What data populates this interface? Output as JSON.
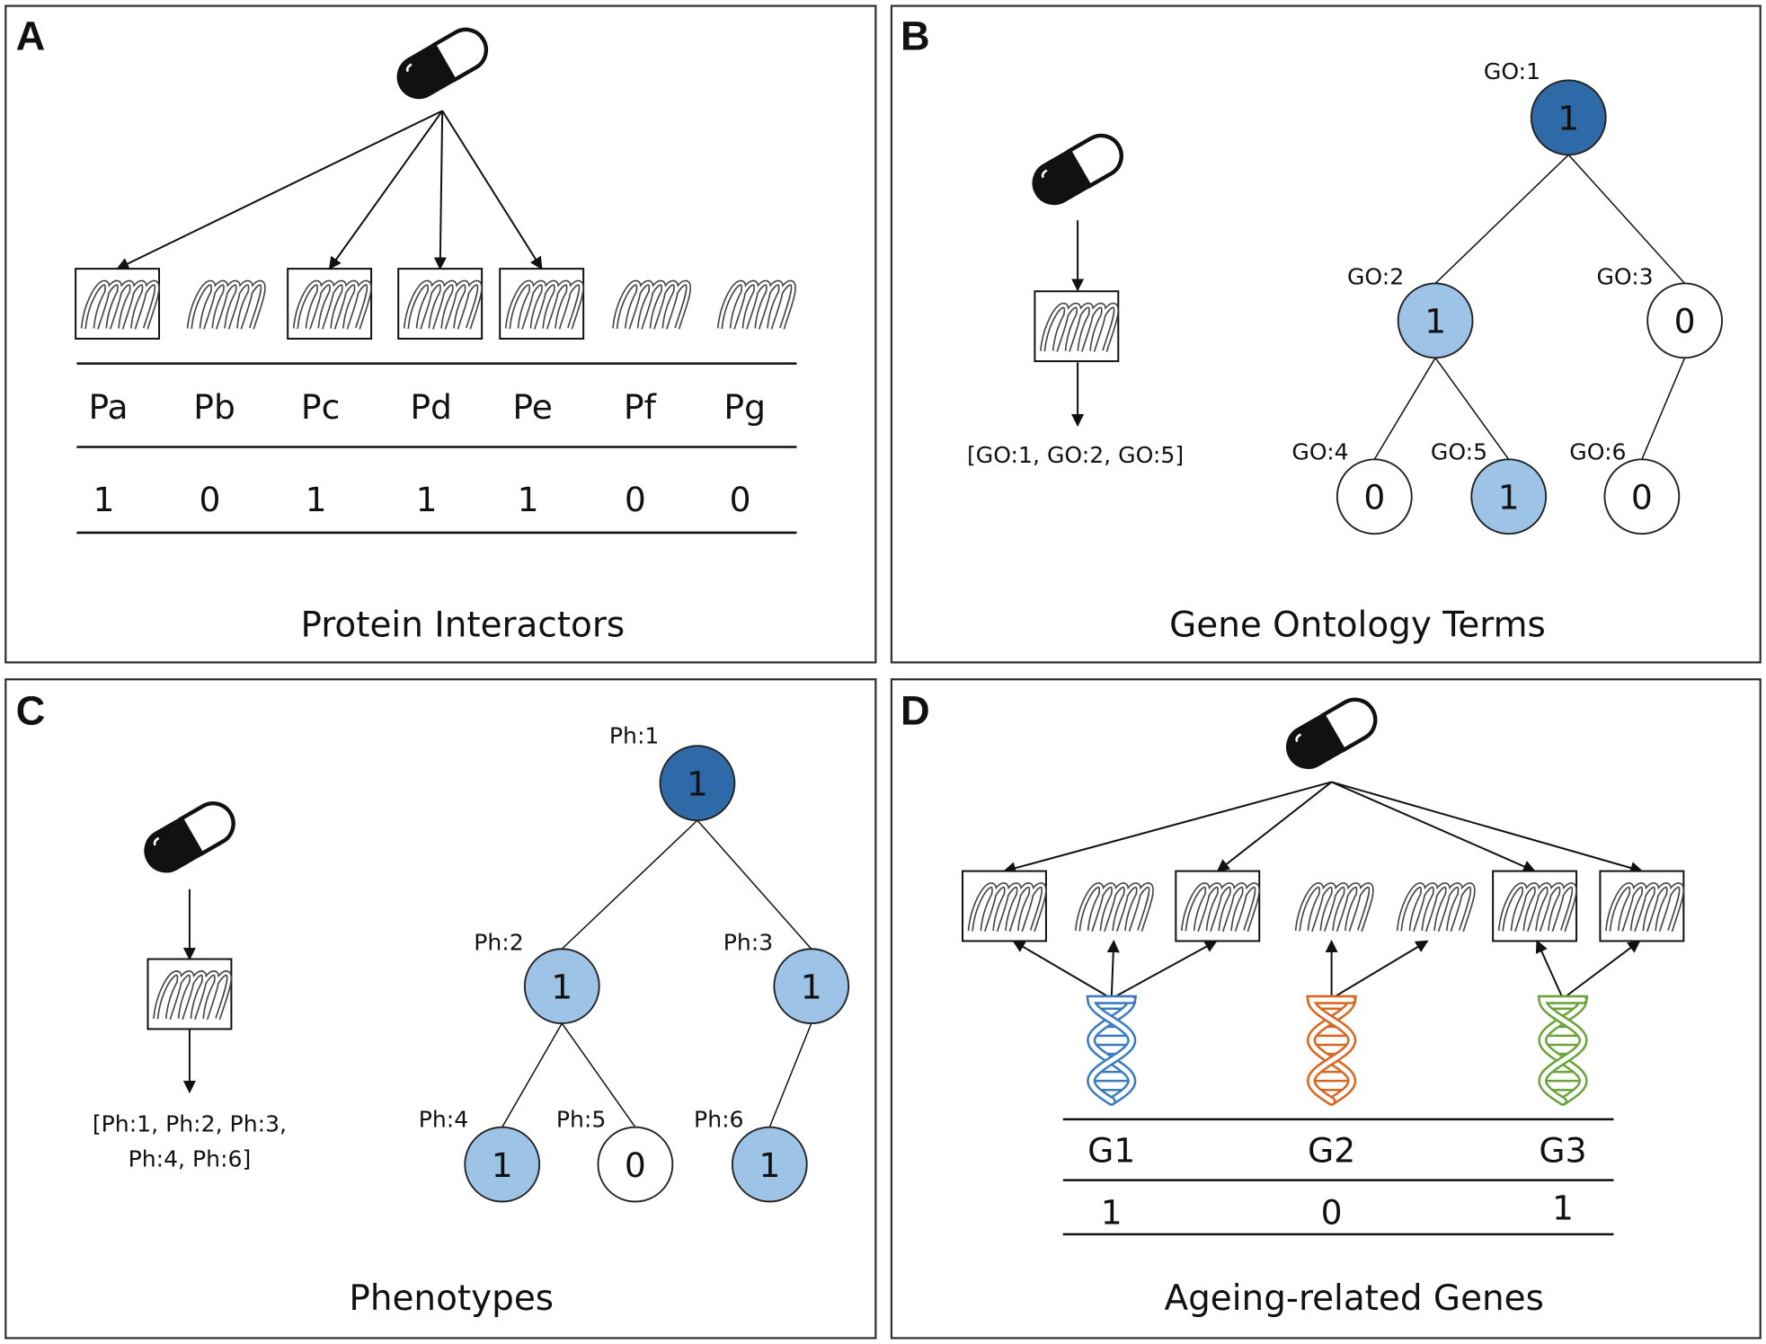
{
  "colors": {
    "dark_node": "#2e6aa8",
    "light_node": "#9dc3e6",
    "white_node": "#ffffff",
    "gene1": "#3b7cc0",
    "gene2": "#d9661f",
    "gene3": "#6aa33a"
  },
  "panels": {
    "A": {
      "letter": "A",
      "title": "Protein Interactors",
      "proteins": [
        "Pa",
        "Pb",
        "Pc",
        "Pd",
        "Pe",
        "Pf",
        "Pg"
      ],
      "values": [
        "1",
        "0",
        "1",
        "1",
        "1",
        "0",
        "0"
      ]
    },
    "B": {
      "letter": "B",
      "title": "Gene Ontology Terms",
      "annotation": "[GO:1, GO:2, GO:5]",
      "nodes": [
        {
          "label": "GO:1",
          "value": "1",
          "level": "dark"
        },
        {
          "label": "GO:2",
          "value": "1",
          "level": "light"
        },
        {
          "label": "GO:3",
          "value": "0",
          "level": "white"
        },
        {
          "label": "GO:4",
          "value": "0",
          "level": "white"
        },
        {
          "label": "GO:5",
          "value": "1",
          "level": "light"
        },
        {
          "label": "GO:6",
          "value": "0",
          "level": "white"
        }
      ]
    },
    "C": {
      "letter": "C",
      "title": "Phenotypes",
      "annotation_lines": [
        "[Ph:1, Ph:2, Ph:3,",
        "Ph:4, Ph:6]"
      ],
      "nodes": [
        {
          "label": "Ph:1",
          "value": "1",
          "level": "dark"
        },
        {
          "label": "Ph:2",
          "value": "1",
          "level": "light"
        },
        {
          "label": "Ph:3",
          "value": "1",
          "level": "light"
        },
        {
          "label": "Ph:4",
          "value": "1",
          "level": "light"
        },
        {
          "label": "Ph:5",
          "value": "0",
          "level": "white"
        },
        {
          "label": "Ph:6",
          "value": "1",
          "level": "light"
        }
      ]
    },
    "D": {
      "letter": "D",
      "title": "Ageing-related Genes",
      "genes": [
        "G1",
        "G2",
        "G3"
      ],
      "values": [
        "1",
        "0",
        "1"
      ]
    }
  }
}
